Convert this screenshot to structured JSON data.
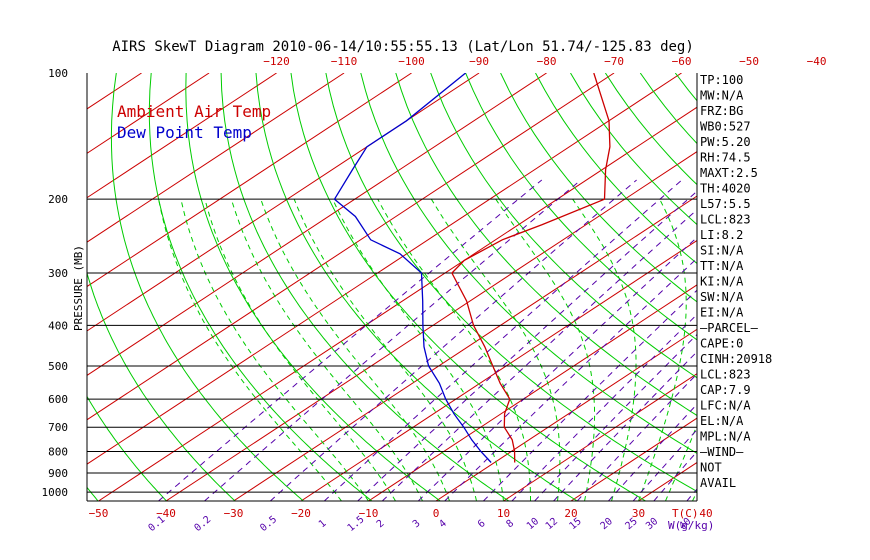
{
  "title": "AIRS SkewT Diagram 2010-06-14/10:55:55.13 (Lat/Lon 51.74/-125.83 deg)",
  "colors": {
    "ambient": "#cc0000",
    "dewpoint": "#0000cc",
    "isotherm": "#cc0000",
    "dry_adiabat": "#00cc00",
    "moist_adiabat": "#00cc00",
    "mixing_ratio": "#5500aa",
    "axis": "#000000"
  },
  "chart_data": {
    "type": "skewt",
    "title": "AIRS SkewT Diagram 2010-06-14/10:55:55.13 (Lat/Lon 51.74/-125.83 deg)",
    "ylabel": "PRESSURE (MB)",
    "bottom_axis_label": "T(C)",
    "mixing_ratio_label": "W(g/kg)",
    "pressure_range": [
      1000,
      100
    ],
    "pressure_ticks": [
      100,
      200,
      300,
      400,
      500,
      600,
      700,
      800,
      900,
      1000
    ],
    "bottom_temp_ticks": [
      -50,
      -40,
      -30,
      -20,
      -10,
      0,
      10,
      20,
      30,
      40
    ],
    "top_temp_ticks": [
      -120,
      -110,
      -100,
      -90,
      -80,
      -70,
      -60,
      -50,
      -40
    ],
    "mixing_ratio_ticks": [
      "0.1",
      "0.2",
      "0.5",
      "1",
      "1.5",
      "2",
      "3",
      "4",
      "6",
      "8",
      "10",
      "12",
      "15",
      "20",
      "25",
      "30",
      "40"
    ],
    "legend": [
      {
        "name": "Ambient Air Temp",
        "color": "#cc0000"
      },
      {
        "name": "Dew Point Temp",
        "color": "#0000cc"
      }
    ],
    "series": [
      {
        "name": "Ambient Air Temp",
        "points": [
          {
            "p": 850,
            "t": 3.0
          },
          {
            "p": 800,
            "t": 0.5
          },
          {
            "p": 750,
            "t": -2.5
          },
          {
            "p": 700,
            "t": -6.5
          },
          {
            "p": 650,
            "t": -9.5
          },
          {
            "p": 600,
            "t": -12.0
          },
          {
            "p": 550,
            "t": -17.0
          },
          {
            "p": 500,
            "t": -22.0
          },
          {
            "p": 450,
            "t": -27.5
          },
          {
            "p": 400,
            "t": -34.0
          },
          {
            "p": 350,
            "t": -40.5
          },
          {
            "p": 300,
            "t": -49.0
          },
          {
            "p": 280,
            "t": -50.0
          },
          {
            "p": 250,
            "t": -49.0
          },
          {
            "p": 230,
            "t": -46.5
          },
          {
            "p": 200,
            "t": -43.0
          },
          {
            "p": 170,
            "t": -49.5
          },
          {
            "p": 150,
            "t": -54.0
          },
          {
            "p": 130,
            "t": -60.0
          },
          {
            "p": 100,
            "t": -73.0
          }
        ]
      },
      {
        "name": "Dew Point Temp",
        "points": [
          {
            "p": 850,
            "t": -0.5
          },
          {
            "p": 800,
            "t": -4.5
          },
          {
            "p": 750,
            "t": -8.5
          },
          {
            "p": 700,
            "t": -12.5
          },
          {
            "p": 650,
            "t": -17.0
          },
          {
            "p": 600,
            "t": -21.5
          },
          {
            "p": 550,
            "t": -26.0
          },
          {
            "p": 500,
            "t": -31.5
          },
          {
            "p": 450,
            "t": -36.5
          },
          {
            "p": 400,
            "t": -41.5
          },
          {
            "p": 350,
            "t": -47.0
          },
          {
            "p": 300,
            "t": -53.5
          },
          {
            "p": 270,
            "t": -61.0
          },
          {
            "p": 250,
            "t": -68.5
          },
          {
            "p": 220,
            "t": -76.0
          },
          {
            "p": 200,
            "t": -83.0
          },
          {
            "p": 170,
            "t": -87.0
          },
          {
            "p": 150,
            "t": -90.0
          },
          {
            "p": 130,
            "t": -90.0
          },
          {
            "p": 100,
            "t": -92.0
          }
        ]
      }
    ],
    "indices": [
      "TP:100",
      "MW:N/A",
      "FRZ:BG",
      "WB0:527",
      "PW:5.20",
      "RH:74.5",
      "MAXT:2.5",
      "TH:4020",
      "L57:5.5",
      "LCL:823",
      "LI:8.2",
      "SI:N/A",
      "TT:N/A",
      "KI:N/A",
      "SW:N/A",
      "EI:N/A",
      "–PARCEL–",
      "CAPE:0",
      "CINH:20918",
      "LCL:823",
      "CAP:7.9",
      "LFC:N/A",
      "EL:N/A",
      "MPL:N/A",
      "–WIND–",
      "NOT",
      "AVAIL"
    ]
  }
}
